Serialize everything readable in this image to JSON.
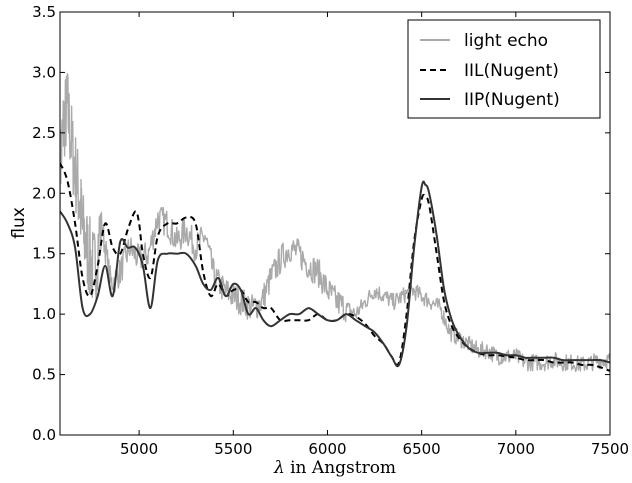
{
  "chart_data": {
    "type": "line",
    "title": "",
    "xlabel_symbol": "λ",
    "xlabel": " in Angstrom",
    "ylabel": "flux",
    "xlim": [
      4580,
      7500
    ],
    "ylim": [
      0.0,
      3.5
    ],
    "xticks": [
      5000,
      5500,
      6000,
      6500,
      7000,
      7500
    ],
    "yticks": [
      0.0,
      0.5,
      1.0,
      1.5,
      2.0,
      2.5,
      3.0,
      3.5
    ],
    "xtick_labels": [
      "5000",
      "5500",
      "6000",
      "6500",
      "7000",
      "7500"
    ],
    "ytick_labels": [
      "0.0",
      "0.5",
      "1.0",
      "1.5",
      "2.0",
      "2.5",
      "3.0",
      "3.5"
    ],
    "grid": false,
    "legend_position": "top-right",
    "series": [
      {
        "name": "light echo",
        "style": "noisy-solid",
        "color": "#aaaaaa",
        "x": [
          4580,
          4600,
          4620,
          4650,
          4680,
          4700,
          4730,
          4760,
          4800,
          4850,
          4900,
          4950,
          5000,
          5050,
          5100,
          5150,
          5200,
          5250,
          5300,
          5350,
          5400,
          5450,
          5500,
          5550,
          5600,
          5650,
          5700,
          5750,
          5800,
          5850,
          5900,
          5950,
          6000,
          6050,
          6100,
          6150,
          6200,
          6250,
          6300,
          6350,
          6400,
          6450,
          6500,
          6550,
          6600,
          6650,
          6700,
          6750,
          6800,
          6850,
          6900,
          6950,
          7000,
          7050,
          7100,
          7150,
          7200,
          7250,
          7300,
          7350,
          7400,
          7450,
          7500
        ],
        "y": [
          2.2,
          2.6,
          2.7,
          2.3,
          2.0,
          1.7,
          1.5,
          1.35,
          1.75,
          1.25,
          1.35,
          1.55,
          1.45,
          1.5,
          1.8,
          1.75,
          1.6,
          1.7,
          1.55,
          1.65,
          1.3,
          1.2,
          1.15,
          1.1,
          1.05,
          1.1,
          1.3,
          1.45,
          1.55,
          1.5,
          1.4,
          1.35,
          1.2,
          1.1,
          1.05,
          1.0,
          1.1,
          1.2,
          1.15,
          1.1,
          1.15,
          1.2,
          1.15,
          1.1,
          1.05,
          0.85,
          0.8,
          0.75,
          0.7,
          0.7,
          0.65,
          0.65,
          0.65,
          0.6,
          0.6,
          0.6,
          0.62,
          0.6,
          0.6,
          0.58,
          0.6,
          0.62,
          0.62
        ]
      },
      {
        "name": "IIL(Nugent)",
        "style": "dashed",
        "color": "#000000",
        "x": [
          4580,
          4620,
          4660,
          4700,
          4740,
          4780,
          4820,
          4860,
          4900,
          4940,
          4980,
          5000,
          5020,
          5060,
          5100,
          5150,
          5200,
          5250,
          5300,
          5340,
          5380,
          5420,
          5460,
          5500,
          5540,
          5580,
          5620,
          5660,
          5700,
          5750,
          5800,
          5850,
          5900,
          5950,
          6000,
          6050,
          6100,
          6150,
          6200,
          6250,
          6300,
          6340,
          6380,
          6420,
          6460,
          6500,
          6520,
          6540,
          6580,
          6620,
          6660,
          6700,
          6750,
          6800,
          6850,
          6900,
          6950,
          7000,
          7050,
          7100,
          7150,
          7200,
          7250,
          7300,
          7350,
          7400,
          7450,
          7500
        ],
        "y": [
          2.25,
          2.1,
          1.75,
          1.3,
          1.15,
          1.4,
          1.75,
          1.55,
          1.5,
          1.7,
          1.85,
          1.75,
          1.5,
          1.3,
          1.65,
          1.75,
          1.75,
          1.8,
          1.75,
          1.35,
          1.15,
          1.25,
          1.15,
          1.2,
          1.2,
          1.1,
          1.1,
          1.05,
          1.05,
          0.95,
          0.95,
          0.95,
          0.95,
          1.0,
          0.95,
          0.95,
          1.0,
          0.98,
          0.92,
          0.82,
          0.75,
          0.65,
          0.6,
          1.0,
          1.6,
          1.95,
          1.97,
          1.9,
          1.5,
          1.1,
          0.9,
          0.8,
          0.72,
          0.68,
          0.66,
          0.66,
          0.65,
          0.64,
          0.62,
          0.62,
          0.62,
          0.6,
          0.6,
          0.6,
          0.58,
          0.58,
          0.56,
          0.53
        ]
      },
      {
        "name": "IIP(Nugent)",
        "style": "solid",
        "color": "#333333",
        "x": [
          4580,
          4620,
          4660,
          4700,
          4740,
          4780,
          4820,
          4860,
          4900,
          4940,
          4980,
          5020,
          5060,
          5100,
          5150,
          5200,
          5250,
          5300,
          5340,
          5380,
          5420,
          5460,
          5500,
          5540,
          5580,
          5620,
          5660,
          5700,
          5750,
          5800,
          5850,
          5900,
          5950,
          6000,
          6050,
          6100,
          6150,
          6200,
          6250,
          6300,
          6340,
          6380,
          6420,
          6460,
          6500,
          6520,
          6540,
          6580,
          6620,
          6660,
          6700,
          6750,
          6800,
          6850,
          6900,
          6950,
          7000,
          7050,
          7100,
          7150,
          7200,
          7250,
          7300,
          7350,
          7400,
          7450,
          7500
        ],
        "y": [
          1.85,
          1.75,
          1.55,
          1.05,
          1.0,
          1.15,
          1.4,
          1.15,
          1.6,
          1.55,
          1.55,
          1.4,
          1.05,
          1.45,
          1.5,
          1.5,
          1.5,
          1.4,
          1.25,
          1.2,
          1.3,
          1.15,
          1.25,
          1.2,
          1.0,
          1.05,
          0.95,
          0.9,
          0.95,
          1.0,
          1.0,
          1.05,
          1.0,
          0.95,
          0.95,
          1.0,
          0.95,
          0.9,
          0.85,
          0.75,
          0.65,
          0.58,
          0.9,
          1.55,
          2.05,
          2.07,
          2.0,
          1.65,
          1.2,
          0.95,
          0.82,
          0.72,
          0.68,
          0.68,
          0.68,
          0.66,
          0.66,
          0.64,
          0.64,
          0.64,
          0.64,
          0.62,
          0.62,
          0.62,
          0.62,
          0.62,
          0.6
        ]
      }
    ]
  }
}
